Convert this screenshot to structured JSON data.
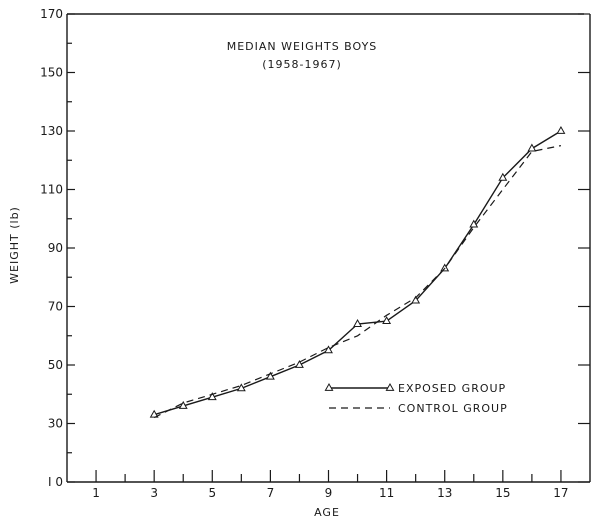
{
  "chart_data": {
    "type": "line",
    "title": "MEDIAN WEIGHTS BOYS",
    "subtitle": "(1958-1967)",
    "xlabel": "AGE",
    "ylabel": "WEIGHT (lb)",
    "xlim": [
      0,
      18
    ],
    "ylim": [
      10,
      170
    ],
    "x_ticks": [
      1,
      3,
      5,
      7,
      9,
      11,
      13,
      15,
      17
    ],
    "y_ticks": [
      10,
      30,
      50,
      70,
      90,
      110,
      130,
      150,
      170
    ],
    "tick_labels": {
      "x": [
        "1",
        "3",
        "5",
        "7",
        "9",
        "11",
        "13",
        "15",
        "17"
      ],
      "y": [
        "I 0",
        "30",
        "50",
        "70",
        "90",
        "110",
        "130",
        "150",
        "170"
      ]
    },
    "grid": false,
    "legend_position": "lower-right",
    "series": [
      {
        "name": "EXPOSED GROUP",
        "style": "solid-triangle",
        "x": [
          3,
          4,
          5,
          6,
          7,
          8,
          9,
          10,
          11,
          12,
          13,
          14,
          15,
          16,
          17
        ],
        "y": [
          33,
          36,
          39,
          42,
          46,
          50,
          55,
          64,
          65,
          72,
          83,
          98,
          114,
          124,
          130
        ]
      },
      {
        "name": "CONTROL GROUP",
        "style": "dashed",
        "x": [
          3,
          4,
          5,
          6,
          7,
          8,
          9,
          10,
          11,
          12,
          13,
          14,
          15,
          16,
          17
        ],
        "y": [
          32,
          37,
          40,
          43,
          47,
          51,
          56,
          60,
          67,
          73,
          83,
          97,
          110,
          123,
          125
        ]
      }
    ]
  }
}
